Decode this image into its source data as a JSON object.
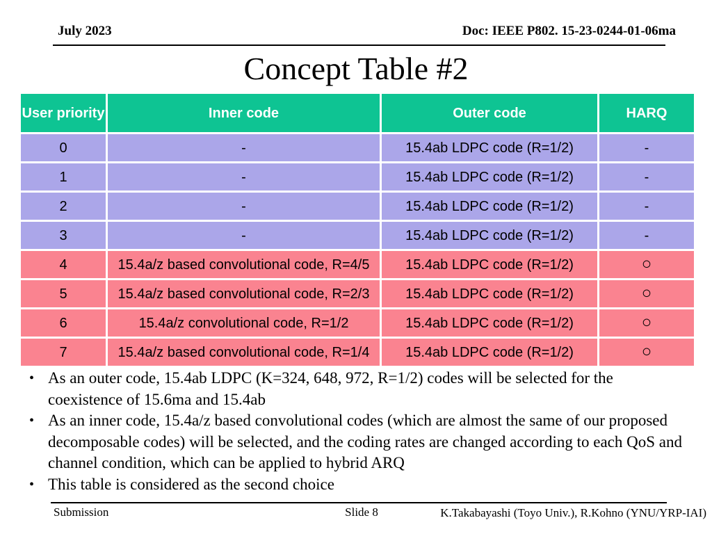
{
  "header": {
    "date": "July 2023",
    "doc_number": "Doc: IEEE P802. 15-23-0244-01-06ma",
    "title": "Concept Table #2"
  },
  "table": {
    "columns": [
      "User priority",
      "Inner code",
      "Outer code",
      "HARQ"
    ],
    "colors": {
      "header_bg": "#0EC493",
      "row_no_harq_bg": "#ABA6E9",
      "row_harq_bg": "#FA8390",
      "header_text": "#ffffff",
      "cell_text": "#000000"
    },
    "harq_circle_glyph": "○",
    "rows": [
      {
        "priority": "0",
        "inner": "-",
        "outer": "15.4ab LDPC code (R=1/2)",
        "harq": "-",
        "color": "purple"
      },
      {
        "priority": "1",
        "inner": "-",
        "outer": "15.4ab LDPC code (R=1/2)",
        "harq": "-",
        "color": "purple"
      },
      {
        "priority": "2",
        "inner": "-",
        "outer": "15.4ab LDPC code (R=1/2)",
        "harq": "-",
        "color": "purple"
      },
      {
        "priority": "3",
        "inner": "-",
        "outer": "15.4ab LDPC code (R=1/2)",
        "harq": "-",
        "color": "purple"
      },
      {
        "priority": "4",
        "inner": "15.4a/z based convolutional code, R=4/5",
        "outer": "15.4ab LDPC code (R=1/2)",
        "harq": "○",
        "color": "pink"
      },
      {
        "priority": "5",
        "inner": "15.4a/z based convolutional code, R=2/3",
        "outer": "15.4ab LDPC code (R=1/2)",
        "harq": "○",
        "color": "pink"
      },
      {
        "priority": "6",
        "inner": "15.4a/z convolutional code, R=1/2",
        "outer": "15.4ab LDPC code (R=1/2)",
        "harq": "○",
        "color": "pink"
      },
      {
        "priority": "7",
        "inner": "15.4a/z based convolutional code, R=1/4",
        "outer": "15.4ab LDPC code (R=1/2)",
        "harq": "○",
        "color": "pink"
      }
    ]
  },
  "bullets": [
    "As an outer code, 15.4ab LDPC (K=324, 648, 972, R=1/2) codes will be selected for the coexistence of 15.6ma and 15.4ab",
    "As an inner code, 15.4a/z based convolutional codes (which are almost the same of our proposed decomposable codes) will be selected, and the coding rates are changed according to each QoS and channel condition, which can be applied to hybrid ARQ",
    "This table is considered as the second choice"
  ],
  "footer": {
    "submission": "Submission",
    "slide": "Slide 8",
    "authors": "K.Takabayashi (Toyo Univ.), R.Kohno (YNU/YRP-IAI)"
  }
}
